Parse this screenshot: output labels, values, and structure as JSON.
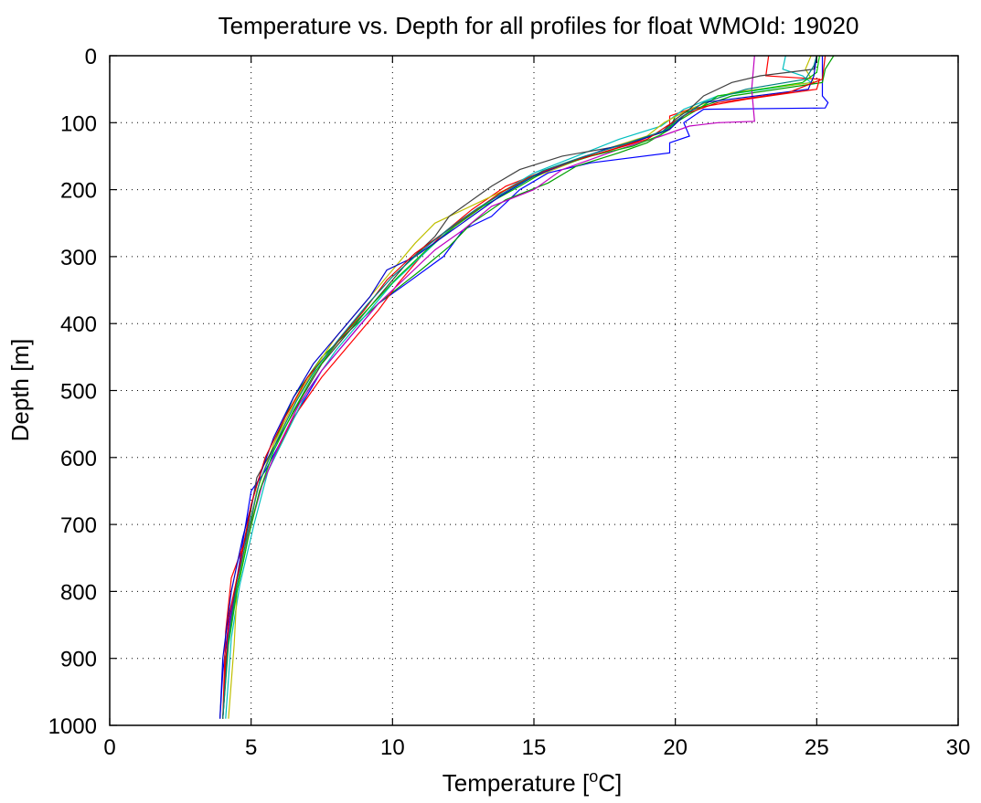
{
  "chart_data": {
    "type": "line",
    "title": "Temperature vs. Depth for all profiles for float WMOId: 19020",
    "xlabel_text": "Temperature [",
    "xlabel_sup": "o",
    "xlabel_tail": "C]",
    "ylabel": "Depth [m]",
    "xlim": [
      0,
      30
    ],
    "ylim": [
      0,
      1000
    ],
    "y_reversed": true,
    "grid": true,
    "x_ticks": [
      "0",
      "5",
      "10",
      "15",
      "20",
      "25",
      "30"
    ],
    "y_ticks": [
      "0",
      "100",
      "200",
      "300",
      "400",
      "500",
      "600",
      "700",
      "800",
      "900",
      "1000"
    ],
    "series": [
      {
        "color": "#0000ff",
        "points": [
          [
            25.2,
            0
          ],
          [
            25.2,
            60
          ],
          [
            25.4,
            70
          ],
          [
            25.3,
            78
          ],
          [
            21.0,
            80
          ],
          [
            20.3,
            100
          ],
          [
            20.5,
            120
          ],
          [
            19.8,
            130
          ],
          [
            19.8,
            145
          ],
          [
            17.0,
            160
          ],
          [
            15.5,
            175
          ],
          [
            14.5,
            200
          ],
          [
            13.5,
            240
          ],
          [
            12.5,
            260
          ],
          [
            11.8,
            300
          ],
          [
            10.5,
            340
          ],
          [
            9.5,
            370
          ],
          [
            8.5,
            420
          ],
          [
            7.5,
            470
          ],
          [
            6.8,
            520
          ],
          [
            6.0,
            580
          ],
          [
            5.5,
            620
          ],
          [
            5.0,
            650
          ],
          [
            4.5,
            780
          ],
          [
            4.2,
            850
          ],
          [
            4.0,
            920
          ],
          [
            3.9,
            990
          ]
        ]
      },
      {
        "color": "#00a000",
        "points": [
          [
            25.6,
            0
          ],
          [
            25.3,
            20
          ],
          [
            25.2,
            40
          ],
          [
            22.0,
            60
          ],
          [
            20.0,
            90
          ],
          [
            19.8,
            110
          ],
          [
            19.0,
            130
          ],
          [
            18.0,
            145
          ],
          [
            16.5,
            165
          ],
          [
            15.5,
            190
          ],
          [
            14.0,
            215
          ],
          [
            12.8,
            250
          ],
          [
            12.0,
            285
          ],
          [
            11.0,
            320
          ],
          [
            9.5,
            370
          ],
          [
            8.5,
            410
          ],
          [
            7.5,
            450
          ],
          [
            6.5,
            510
          ],
          [
            5.8,
            580
          ],
          [
            5.2,
            650
          ],
          [
            4.8,
            740
          ],
          [
            4.4,
            820
          ],
          [
            4.1,
            900
          ],
          [
            4.0,
            990
          ]
        ]
      },
      {
        "color": "#ff0000",
        "points": [
          [
            23.3,
            0
          ],
          [
            23.2,
            30
          ],
          [
            25.1,
            35
          ],
          [
            25.0,
            50
          ],
          [
            22.5,
            65
          ],
          [
            20.5,
            80
          ],
          [
            19.8,
            90
          ],
          [
            19.8,
            110
          ],
          [
            18.5,
            130
          ],
          [
            17.0,
            150
          ],
          [
            15.5,
            170
          ],
          [
            14.0,
            195
          ],
          [
            12.8,
            230
          ],
          [
            11.8,
            265
          ],
          [
            11.0,
            300
          ],
          [
            10.2,
            340
          ],
          [
            9.5,
            380
          ],
          [
            8.5,
            430
          ],
          [
            7.5,
            480
          ],
          [
            6.5,
            540
          ],
          [
            5.8,
            600
          ],
          [
            5.3,
            650
          ],
          [
            5.0,
            700
          ],
          [
            4.3,
            780
          ],
          [
            4.1,
            860
          ],
          [
            4.0,
            990
          ]
        ]
      },
      {
        "color": "#00bfbf",
        "points": [
          [
            23.9,
            0
          ],
          [
            23.8,
            20
          ],
          [
            24.5,
            30
          ],
          [
            24.8,
            40
          ],
          [
            21.5,
            60
          ],
          [
            20.3,
            80
          ],
          [
            19.5,
            105
          ],
          [
            18.0,
            125
          ],
          [
            16.5,
            150
          ],
          [
            15.0,
            175
          ],
          [
            14.0,
            200
          ],
          [
            13.0,
            230
          ],
          [
            12.0,
            260
          ],
          [
            11.0,
            300
          ],
          [
            10.0,
            340
          ],
          [
            9.0,
            390
          ],
          [
            8.0,
            440
          ],
          [
            7.0,
            500
          ],
          [
            6.3,
            560
          ],
          [
            5.6,
            620
          ],
          [
            5.1,
            700
          ],
          [
            4.6,
            790
          ],
          [
            4.3,
            870
          ],
          [
            4.1,
            990
          ]
        ]
      },
      {
        "color": "#bf00bf",
        "points": [
          [
            22.8,
            0
          ],
          [
            22.7,
            50
          ],
          [
            22.8,
            98
          ],
          [
            21.5,
            100
          ],
          [
            20.5,
            105
          ],
          [
            19.5,
            120
          ],
          [
            18.0,
            140
          ],
          [
            16.0,
            170
          ],
          [
            15.0,
            200
          ],
          [
            13.5,
            225
          ],
          [
            12.5,
            260
          ],
          [
            11.5,
            290
          ],
          [
            10.5,
            330
          ],
          [
            9.5,
            370
          ],
          [
            8.5,
            420
          ],
          [
            7.5,
            470
          ],
          [
            6.7,
            520
          ],
          [
            6.0,
            580
          ],
          [
            5.4,
            640
          ],
          [
            5.0,
            700
          ],
          [
            4.5,
            780
          ],
          [
            4.2,
            860
          ],
          [
            4.0,
            990
          ]
        ]
      },
      {
        "color": "#bfbf00",
        "points": [
          [
            24.8,
            0
          ],
          [
            24.6,
            20
          ],
          [
            24.9,
            40
          ],
          [
            22.0,
            55
          ],
          [
            20.5,
            80
          ],
          [
            19.6,
            100
          ],
          [
            19.0,
            120
          ],
          [
            17.5,
            140
          ],
          [
            16.0,
            165
          ],
          [
            14.5,
            190
          ],
          [
            13.0,
            220
          ],
          [
            11.5,
            250
          ],
          [
            10.8,
            280
          ],
          [
            10.0,
            320
          ],
          [
            9.0,
            370
          ],
          [
            8.0,
            420
          ],
          [
            7.2,
            470
          ],
          [
            6.5,
            520
          ],
          [
            5.8,
            580
          ],
          [
            5.2,
            650
          ],
          [
            4.8,
            730
          ],
          [
            4.5,
            800
          ],
          [
            4.4,
            880
          ],
          [
            4.2,
            990
          ]
        ]
      },
      {
        "color": "#404040",
        "points": [
          [
            25.0,
            0
          ],
          [
            24.9,
            20
          ],
          [
            23.0,
            30
          ],
          [
            22.0,
            40
          ],
          [
            21.0,
            60
          ],
          [
            20.5,
            80
          ],
          [
            20.0,
            95
          ],
          [
            19.5,
            115
          ],
          [
            18.0,
            135
          ],
          [
            16.0,
            150
          ],
          [
            14.5,
            170
          ],
          [
            13.5,
            195
          ],
          [
            13.0,
            210
          ],
          [
            12.0,
            240
          ],
          [
            11.5,
            270
          ],
          [
            10.5,
            310
          ],
          [
            9.5,
            360
          ],
          [
            8.5,
            410
          ],
          [
            7.5,
            460
          ],
          [
            6.8,
            510
          ],
          [
            6.0,
            570
          ],
          [
            5.2,
            630
          ],
          [
            4.9,
            700
          ],
          [
            4.5,
            780
          ],
          [
            4.2,
            870
          ],
          [
            4.0,
            990
          ]
        ]
      },
      {
        "color": "#00c000",
        "points": [
          [
            25.1,
            0
          ],
          [
            25.0,
            25
          ],
          [
            24.5,
            40
          ],
          [
            21.5,
            60
          ],
          [
            20.8,
            80
          ],
          [
            20.0,
            100
          ],
          [
            19.5,
            118
          ],
          [
            18.5,
            135
          ],
          [
            17.0,
            150
          ],
          [
            15.5,
            170
          ],
          [
            14.5,
            195
          ],
          [
            13.2,
            225
          ],
          [
            12.2,
            255
          ],
          [
            11.2,
            290
          ],
          [
            10.2,
            330
          ],
          [
            9.2,
            375
          ],
          [
            8.2,
            420
          ],
          [
            7.3,
            470
          ],
          [
            6.5,
            530
          ],
          [
            5.8,
            590
          ],
          [
            5.3,
            650
          ],
          [
            4.9,
            720
          ],
          [
            4.5,
            800
          ],
          [
            4.2,
            880
          ],
          [
            4.0,
            990
          ]
        ]
      },
      {
        "color": "#0000cc",
        "points": [
          [
            25.0,
            0
          ],
          [
            24.9,
            30
          ],
          [
            24.7,
            50
          ],
          [
            21.0,
            70
          ],
          [
            20.3,
            90
          ],
          [
            19.8,
            110
          ],
          [
            18.8,
            125
          ],
          [
            17.5,
            140
          ],
          [
            16.2,
            160
          ],
          [
            15.0,
            180
          ],
          [
            13.8,
            210
          ],
          [
            12.8,
            240
          ],
          [
            11.8,
            270
          ],
          [
            10.8,
            300
          ],
          [
            9.8,
            320
          ],
          [
            9.2,
            360
          ],
          [
            8.2,
            410
          ],
          [
            7.2,
            460
          ],
          [
            6.5,
            510
          ],
          [
            5.8,
            570
          ],
          [
            5.2,
            640
          ],
          [
            4.7,
            720
          ],
          [
            4.3,
            800
          ],
          [
            4.0,
            900
          ],
          [
            3.9,
            990
          ]
        ]
      },
      {
        "color": "#e00000",
        "points": [
          [
            25.3,
            0
          ],
          [
            25.2,
            35
          ],
          [
            24.0,
            55
          ],
          [
            21.5,
            70
          ],
          [
            20.5,
            85
          ],
          [
            19.7,
            105
          ],
          [
            19.0,
            125
          ],
          [
            17.8,
            140
          ],
          [
            16.3,
            158
          ],
          [
            15.0,
            178
          ],
          [
            13.8,
            205
          ],
          [
            12.8,
            235
          ],
          [
            11.8,
            265
          ],
          [
            10.8,
            295
          ],
          [
            9.8,
            335
          ],
          [
            9.0,
            380
          ],
          [
            8.0,
            430
          ],
          [
            7.0,
            480
          ],
          [
            6.2,
            540
          ],
          [
            5.5,
            600
          ],
          [
            5.0,
            670
          ],
          [
            4.6,
            760
          ],
          [
            4.2,
            840
          ],
          [
            4.0,
            990
          ]
        ]
      },
      {
        "color": "#008080",
        "points": [
          [
            25.0,
            0
          ],
          [
            24.9,
            15
          ],
          [
            24.6,
            35
          ],
          [
            22.5,
            50
          ],
          [
            21.0,
            70
          ],
          [
            20.2,
            92
          ],
          [
            19.6,
            112
          ],
          [
            18.2,
            132
          ],
          [
            16.8,
            150
          ],
          [
            15.3,
            172
          ],
          [
            14.2,
            198
          ],
          [
            13.0,
            228
          ],
          [
            12.0,
            258
          ],
          [
            11.0,
            292
          ],
          [
            10.0,
            330
          ],
          [
            9.1,
            372
          ],
          [
            8.2,
            418
          ],
          [
            7.3,
            466
          ],
          [
            6.6,
            516
          ],
          [
            5.9,
            576
          ],
          [
            5.3,
            636
          ],
          [
            4.9,
            708
          ],
          [
            4.5,
            790
          ],
          [
            4.2,
            870
          ],
          [
            4.0,
            990
          ]
        ]
      }
    ]
  }
}
